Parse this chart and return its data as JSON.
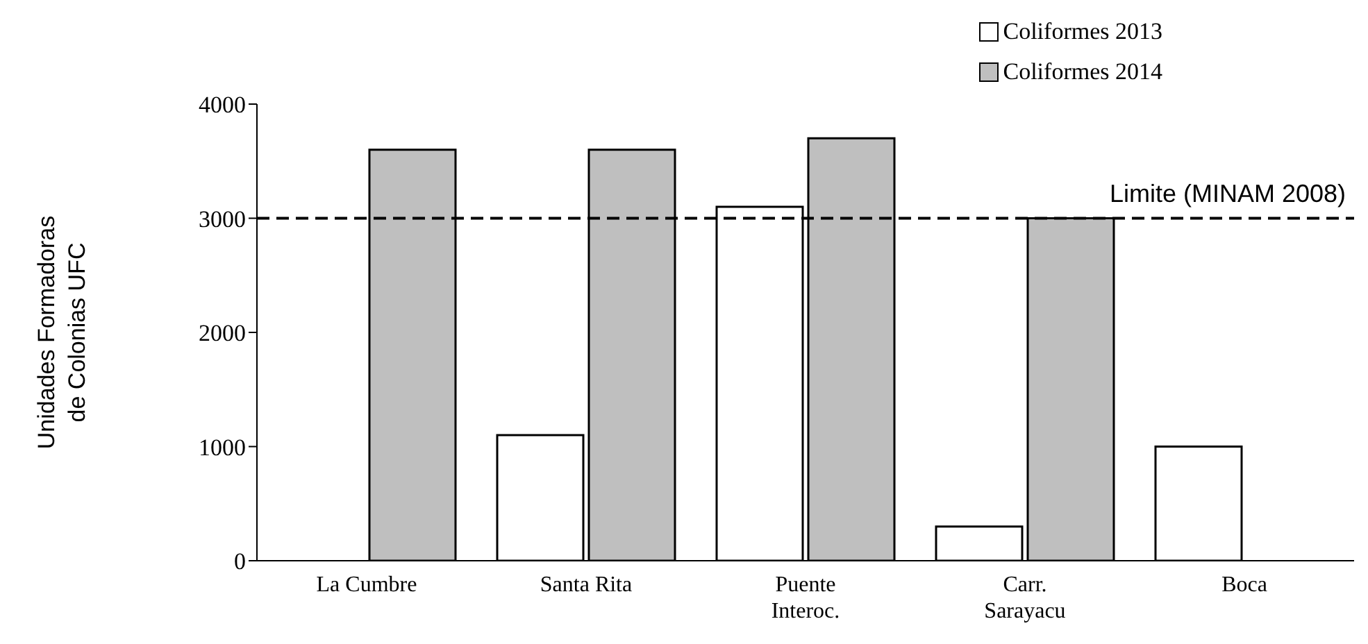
{
  "chart_data": {
    "type": "bar",
    "ylabel": "Unidades Formadoras\nde Colonias  UFC",
    "categories": [
      "La Cumbre",
      "Santa Rita",
      "Puente\nInteroc.",
      "Carr.\nSarayacu",
      "Boca"
    ],
    "series": [
      {
        "name": "Coliformes 2013",
        "color": "#ffffff",
        "values": [
          null,
          1100,
          3100,
          300,
          1000
        ]
      },
      {
        "name": "Coliformes 2014",
        "color": "#bfbfbf",
        "values": [
          3600,
          3600,
          3700,
          3000,
          null
        ]
      }
    ],
    "ylim": [
      0,
      4000
    ],
    "yticks": [
      0,
      1000,
      2000,
      3000,
      4000
    ],
    "grid": false,
    "legend": "top right",
    "ref_lines": [
      {
        "axis": "y",
        "value": 3000,
        "label": "Limite (MINAM 2008)",
        "line_style": "dashed",
        "color": "#000000"
      }
    ]
  }
}
